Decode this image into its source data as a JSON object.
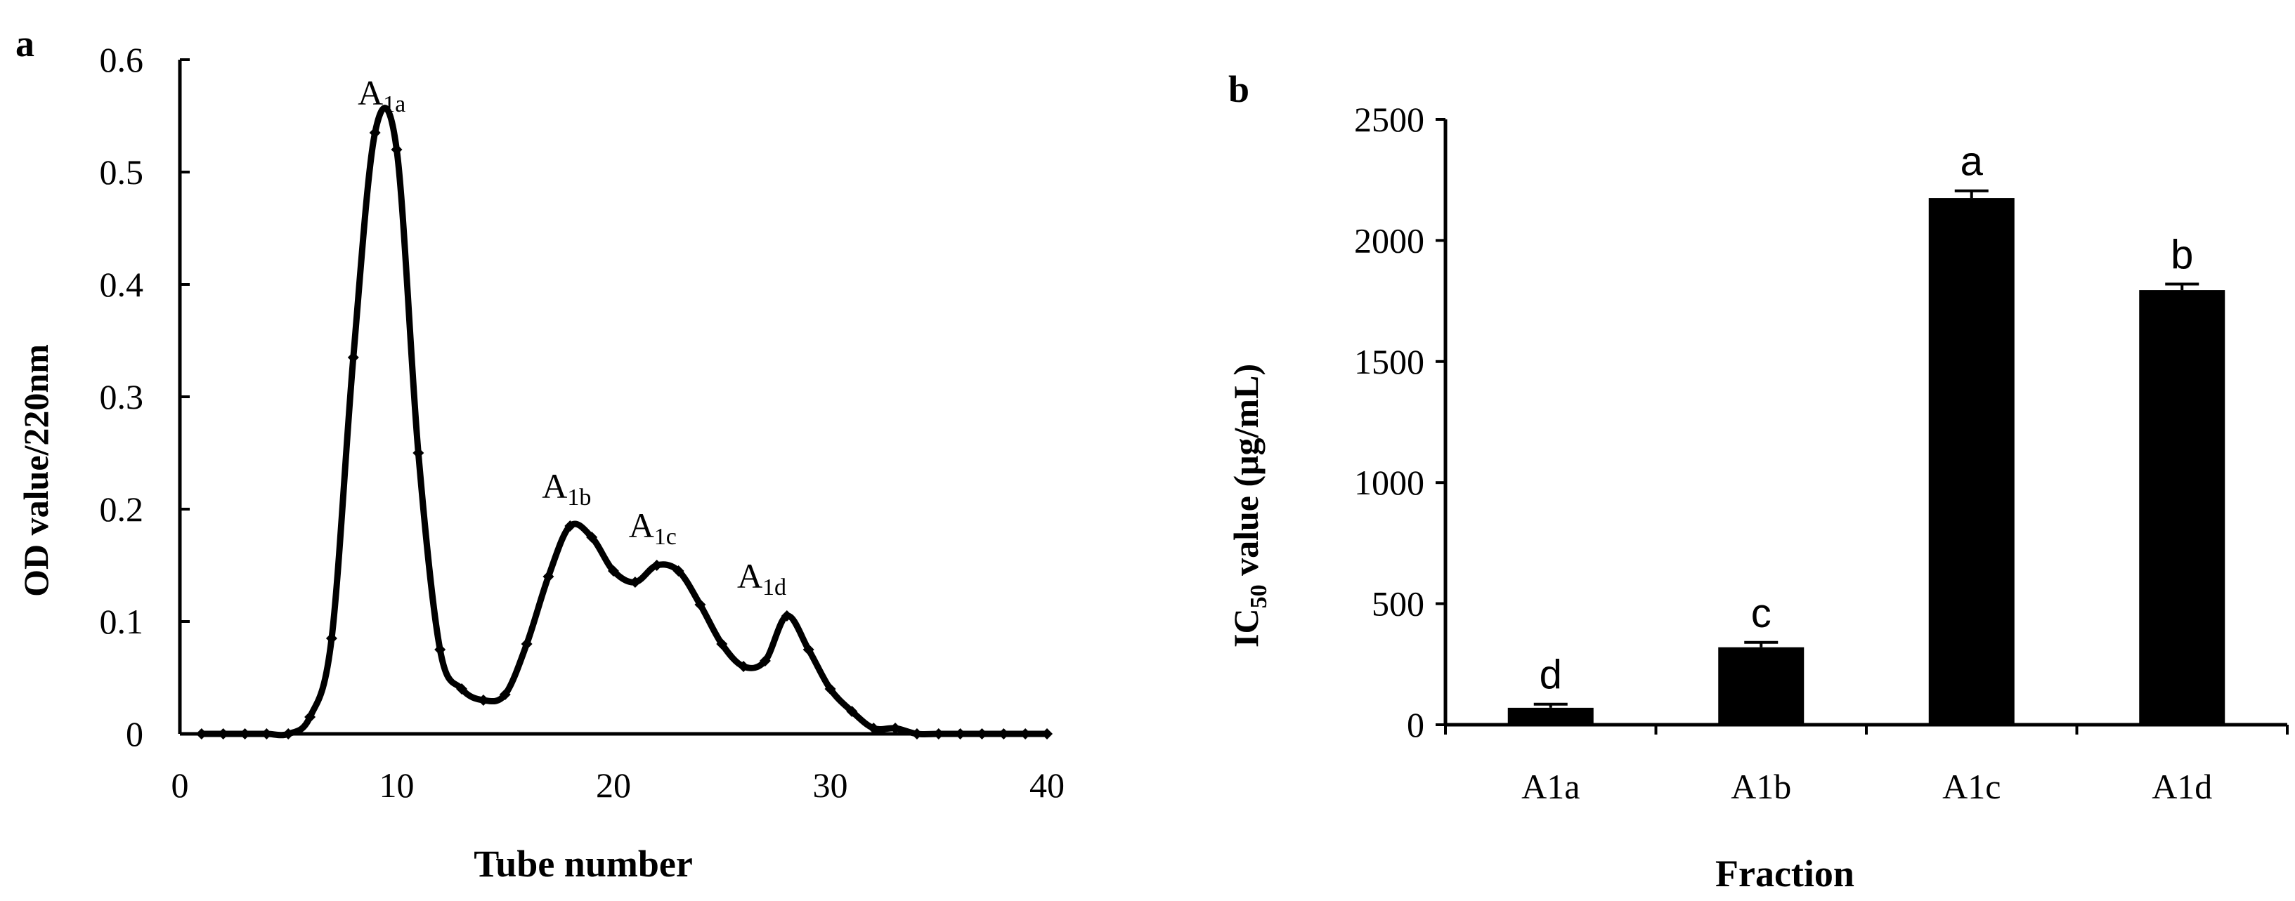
{
  "chart_data": [
    {
      "panel_label": "a",
      "type": "line",
      "xlabel": "Tube number",
      "ylabel": "OD value/220nm",
      "xlim": [
        0,
        40
      ],
      "ylim": [
        0,
        0.6
      ],
      "xticks": [
        0,
        10,
        20,
        30,
        40
      ],
      "xtick_labels": [
        "0",
        "10",
        "20",
        "30",
        "40"
      ],
      "yticks": [
        0,
        0.1,
        0.2,
        0.3,
        0.4,
        0.5,
        0.6
      ],
      "ytick_labels": [
        "0",
        "0.1",
        "0.2",
        "0.3",
        "0.4",
        "0.5",
        "0.6"
      ],
      "grid": false,
      "color": "#000000",
      "series": [
        {
          "x": [
            1,
            2,
            3,
            4,
            5,
            6,
            7,
            8,
            9,
            10,
            11,
            12,
            13,
            14,
            15,
            16,
            17,
            18,
            19,
            20,
            21,
            22,
            23,
            24,
            25,
            26,
            27,
            28,
            29,
            30,
            31,
            32,
            33,
            34,
            35,
            36,
            37,
            38,
            39,
            40
          ],
          "values": [
            0.0,
            0.0,
            0.0,
            0.0,
            0.0,
            0.015,
            0.085,
            0.335,
            0.535,
            0.52,
            0.25,
            0.075,
            0.04,
            0.03,
            0.035,
            0.08,
            0.14,
            0.185,
            0.175,
            0.145,
            0.135,
            0.15,
            0.145,
            0.115,
            0.08,
            0.06,
            0.065,
            0.105,
            0.075,
            0.04,
            0.02,
            0.005,
            0.005,
            0.0,
            0.0,
            0.0,
            0.0,
            0.0,
            0.0,
            0.0
          ]
        }
      ],
      "annotations": [
        {
          "base": "A",
          "sub": "1a",
          "x": 9.5,
          "y": 0.535
        },
        {
          "base": "A",
          "sub": "1b",
          "x": 18,
          "y": 0.185
        },
        {
          "base": "A",
          "sub": "1c",
          "x": 22,
          "y": 0.15
        },
        {
          "base": "A",
          "sub": "1d",
          "x": 27,
          "y": 0.105
        }
      ]
    },
    {
      "panel_label": "b",
      "type": "bar",
      "categories": [
        "A1a",
        "A1b",
        "A1c",
        "A1d"
      ],
      "values": [
        70,
        320,
        2175,
        1795
      ],
      "errors": [
        15,
        20,
        30,
        25
      ],
      "sig_letters": [
        "d",
        "c",
        "a",
        "b"
      ],
      "xlabel": "Fraction",
      "ylabel": {
        "prefix": "IC",
        "sub": "50",
        "suffix": " value (μg/mL)"
      },
      "ylim": [
        0,
        2500
      ],
      "yticks": [
        0,
        500,
        1000,
        1500,
        2000,
        2500
      ],
      "ytick_labels": [
        "0",
        "500",
        "1000",
        "1500",
        "2000",
        "2500"
      ],
      "grid": false,
      "color": "#000000"
    }
  ]
}
